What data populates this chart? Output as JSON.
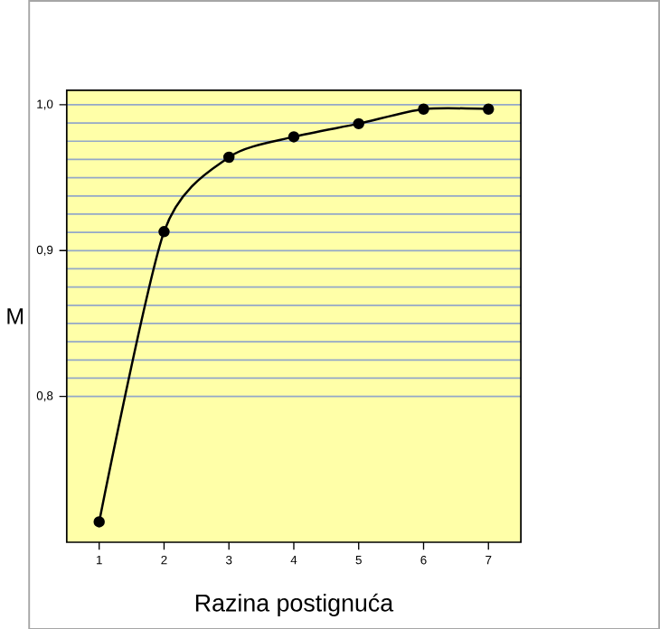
{
  "chart_data": {
    "type": "line",
    "xlabel": "Razina postignuća",
    "ylabel": "M",
    "x": [
      1,
      2,
      3,
      4,
      5,
      6,
      7
    ],
    "values": [
      0.714,
      0.913,
      0.964,
      0.978,
      0.987,
      0.997,
      0.997
    ],
    "color": "#000000",
    "marker": "circle",
    "line_style": "solid",
    "xlim": [
      0.5,
      7.5
    ],
    "ylim": [
      0.7,
      1.01
    ],
    "xticks": [
      1,
      2,
      3,
      4,
      5,
      6,
      7
    ],
    "yticks": [
      {
        "value": 0.8,
        "label": "0,8"
      },
      {
        "value": 0.9,
        "label": "0,9"
      },
      {
        "value": 1.0,
        "label": "1,0"
      }
    ],
    "grid": "y"
  }
}
